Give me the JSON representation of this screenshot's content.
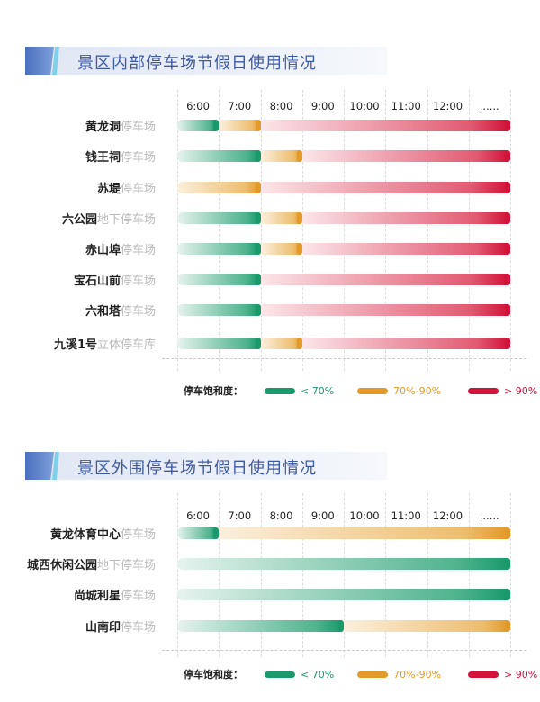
{
  "colors": {
    "green": "#1a9a6c",
    "yellow": "#e39a2a",
    "red": "#d2143a"
  },
  "legend": {
    "title": "停车饱和度：",
    "items": [
      {
        "label": "< 70%",
        "level": "green"
      },
      {
        "label": "70%-90%",
        "level": "yellow"
      },
      {
        "label": "> 90%",
        "level": "red"
      }
    ]
  },
  "chart_data": [
    {
      "type": "table",
      "title": "景区内部停车场节假日使用情况",
      "time_labels": [
        "6:00",
        "7:00",
        "8:00",
        "9:00",
        "10:00",
        "11:00",
        "12:00",
        "......"
      ],
      "rows": [
        {
          "name": "黄龙洞",
          "suffix": "停车场",
          "segments": [
            {
              "level": "green",
              "from": 0,
              "to": 1
            },
            {
              "level": "yellow",
              "from": 1,
              "to": 2
            },
            {
              "level": "red",
              "from": 2,
              "to": 8
            }
          ]
        },
        {
          "name": "钱王祠",
          "suffix": "停车场",
          "segments": [
            {
              "level": "green",
              "from": 0,
              "to": 2
            },
            {
              "level": "yellow",
              "from": 2,
              "to": 3
            },
            {
              "level": "red",
              "from": 3,
              "to": 8
            }
          ]
        },
        {
          "name": "苏堤",
          "suffix": "停车场",
          "segments": [
            {
              "level": "yellow",
              "from": 0,
              "to": 2
            },
            {
              "level": "red",
              "from": 2,
              "to": 8
            }
          ]
        },
        {
          "name": "六公园",
          "suffix": "地下停车场",
          "segments": [
            {
              "level": "green",
              "from": 0,
              "to": 2
            },
            {
              "level": "yellow",
              "from": 2,
              "to": 3
            },
            {
              "level": "red",
              "from": 3,
              "to": 8
            }
          ]
        },
        {
          "name": "赤山埠",
          "suffix": "停车场",
          "segments": [
            {
              "level": "green",
              "from": 0,
              "to": 2
            },
            {
              "level": "yellow",
              "from": 2,
              "to": 3
            },
            {
              "level": "red",
              "from": 3,
              "to": 8
            }
          ]
        },
        {
          "name": "宝石山前",
          "suffix": "停车场",
          "segments": [
            {
              "level": "green",
              "from": 0,
              "to": 2
            },
            {
              "level": "red",
              "from": 2,
              "to": 8
            }
          ]
        },
        {
          "name": "六和塔",
          "suffix": "停车场",
          "segments": [
            {
              "level": "green",
              "from": 0,
              "to": 2
            },
            {
              "level": "red",
              "from": 2,
              "to": 8
            }
          ]
        },
        {
          "name": "九溪1号",
          "suffix": "立体停车库",
          "segments": [
            {
              "level": "green",
              "from": 0,
              "to": 2
            },
            {
              "level": "yellow",
              "from": 2,
              "to": 3
            },
            {
              "level": "red",
              "from": 3,
              "to": 8
            }
          ]
        }
      ]
    },
    {
      "type": "table",
      "title": "景区外围停车场节假日使用情况",
      "time_labels": [
        "6:00",
        "7:00",
        "8:00",
        "9:00",
        "10:00",
        "11:00",
        "12:00",
        "......"
      ],
      "rows": [
        {
          "name": "黄龙体育中心",
          "suffix": "停车场",
          "segments": [
            {
              "level": "green",
              "from": 0,
              "to": 1
            },
            {
              "level": "yellow",
              "from": 1,
              "to": 8
            }
          ]
        },
        {
          "name": "城西休闲公园",
          "suffix": "地下停车场",
          "segments": [
            {
              "level": "green",
              "from": 0,
              "to": 8
            }
          ]
        },
        {
          "name": "尚城利星",
          "suffix": "停车场",
          "segments": [
            {
              "level": "green",
              "from": 0,
              "to": 8
            }
          ]
        },
        {
          "name": "山南印",
          "suffix": "停车场",
          "segments": [
            {
              "level": "green",
              "from": 0,
              "to": 4
            },
            {
              "level": "yellow",
              "from": 4,
              "to": 8
            }
          ]
        }
      ]
    }
  ]
}
